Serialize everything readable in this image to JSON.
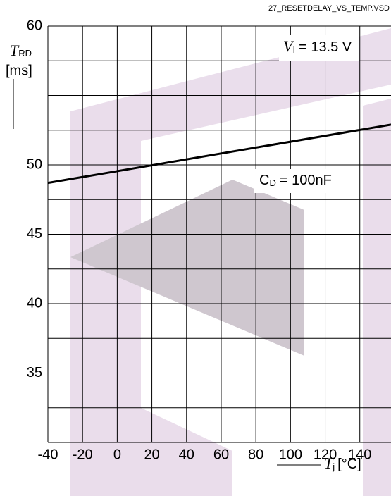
{
  "chart_data": {
    "type": "line",
    "file_label": "27_RESETDELAY_VS_TEMP.VSD",
    "y_label": {
      "symbol": "T",
      "sub": "RD",
      "unit": "[ms]"
    },
    "x_label": {
      "symbol": "T",
      "sub": "j",
      "unit": "[°C]"
    },
    "condition": {
      "symbol": "V",
      "sub": "I",
      "rest": "= 13.5 V"
    },
    "x": [
      -40,
      158
    ],
    "series": [
      {
        "name": {
          "symbol": "C",
          "sub": "D",
          "rest": "= 100nF"
        },
        "color": "#000000",
        "values": [
          48.7,
          52.9
        ]
      }
    ],
    "xlim": [
      -40,
      158
    ],
    "xticks": [
      -40,
      -20,
      0,
      20,
      40,
      60,
      80,
      100,
      120,
      140
    ],
    "ylim": [
      30,
      60
    ],
    "yticks": [
      35,
      40,
      45,
      50,
      60
    ],
    "ygrid": [
      30,
      32.5,
      35,
      37.5,
      40,
      42.5,
      45,
      47.5,
      50,
      52.5,
      55,
      57.5,
      60
    ],
    "grid": true
  }
}
